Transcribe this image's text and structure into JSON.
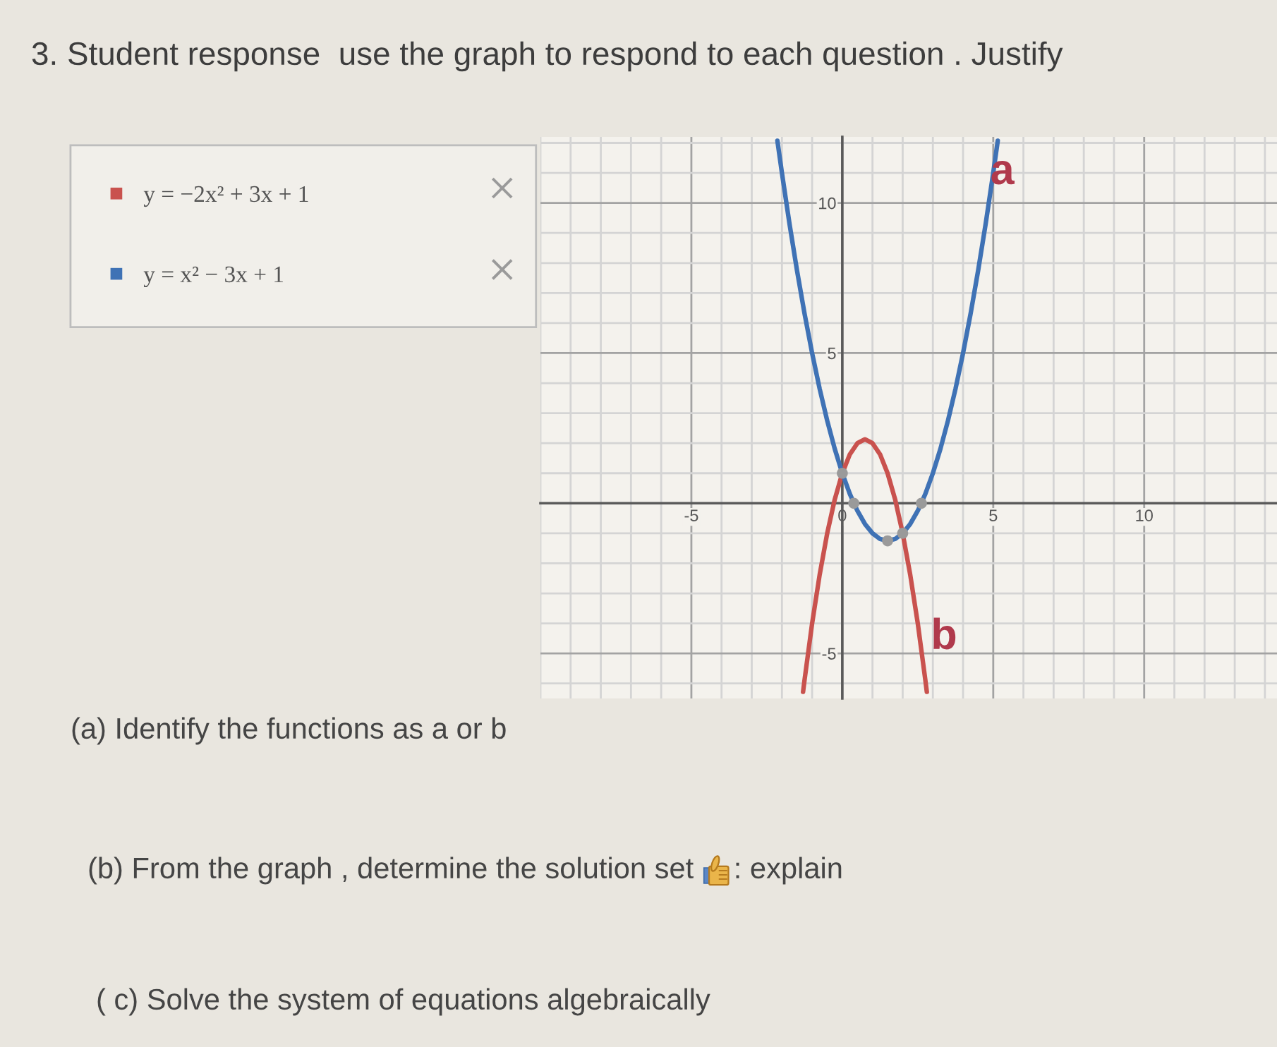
{
  "chart_data": {
    "type": "line",
    "title": "3. Student response  use the graph to respond to each question . Justify",
    "annotations": [
      "(a) Identify the functions as a or b",
      "(b) From the graph , determine the solution set",
      ": explain",
      "( c) Solve the system of equations algebraically",
      "b",
      {
        "text": "a",
        "x": 5.3,
        "y": 11
      }
    ],
    "series": [
      {
        "name": "y = −2x² + 3x + 1",
        "color": "#c9524e",
        "x": [
          -1.3,
          -1.25,
          -1,
          -0.75,
          -0.5,
          -0.25,
          0,
          0.25,
          0.5,
          0.75,
          1,
          1.25,
          1.5,
          1.75,
          2,
          2.25,
          2.5,
          2.75,
          2.8
        ],
        "values": [
          -6.28,
          -5.88,
          -4,
          -2.38,
          -1,
          0.13,
          1,
          1.63,
          2,
          2.13,
          2,
          1.63,
          1,
          0.13,
          -1,
          -2.38,
          -4,
          -5.88,
          -6.28
        ]
      },
      {
        "name": "y = x² − 3x + 1",
        "color": "#3f72b5",
        "x": [
          -2.15,
          -2,
          -1.75,
          -1.5,
          -1.25,
          -1,
          -0.75,
          -0.5,
          -0.25,
          0,
          0.25,
          0.5,
          0.75,
          1,
          1.25,
          1.5,
          1.75,
          2,
          2.25,
          2.5,
          2.75,
          3,
          3.25,
          3.5,
          3.75,
          4,
          4.25,
          4.5,
          4.75,
          5,
          5.15
        ],
        "values": [
          12.07,
          11,
          9.31,
          7.75,
          6.31,
          5,
          3.81,
          2.75,
          1.81,
          1,
          0.31,
          -0.25,
          -0.69,
          -1,
          -1.19,
          -1.25,
          -1.19,
          -1,
          -0.69,
          -0.25,
          0.31,
          1,
          1.81,
          2.75,
          3.81,
          5,
          6.31,
          7.75,
          9.31,
          11,
          12.07
        ]
      },
      {
        "type": "scatter",
        "color": "#9a9a9a",
        "marker": "circle",
        "x": [
          0,
          0.38,
          1.5,
          2,
          2.62
        ],
        "values": [
          1,
          0,
          -1.25,
          -1,
          0
        ]
      }
    ],
    "xlim": [
      -10,
      14.4
    ],
    "ylim": [
      -6.5,
      12.2
    ],
    "xticks": [
      {
        "value": -10,
        "label": null
      },
      {
        "value": -9,
        "label": null
      },
      {
        "value": -8,
        "label": null
      },
      {
        "value": -7,
        "label": null
      },
      {
        "value": -6,
        "label": null
      },
      -5,
      {
        "value": -4,
        "label": null
      },
      {
        "value": -3,
        "label": null
      },
      {
        "value": -2,
        "label": null
      },
      {
        "value": -1,
        "label": null
      },
      0,
      {
        "value": 1,
        "label": null
      },
      {
        "value": 2,
        "label": null
      },
      {
        "value": 3,
        "label": null
      },
      {
        "value": 4,
        "label": null
      },
      5,
      {
        "value": 6,
        "label": null
      },
      {
        "value": 7,
        "label": null
      },
      {
        "value": 8,
        "label": null
      },
      {
        "value": 9,
        "label": null
      },
      10,
      {
        "value": 11,
        "label": null
      },
      {
        "value": 12,
        "label": null
      },
      {
        "value": 13,
        "label": null
      },
      {
        "value": 14,
        "label": null
      }
    ],
    "yticks": [
      {
        "value": -6,
        "label": null
      },
      -5,
      {
        "value": -4,
        "label": null
      },
      {
        "value": -3,
        "label": null
      },
      {
        "value": -2,
        "label": null
      },
      {
        "value": -1,
        "label": null
      },
      {
        "value": 0,
        "label": null
      },
      {
        "value": 1,
        "label": null
      },
      {
        "value": 2,
        "label": null
      },
      {
        "value": 3,
        "label": null
      },
      {
        "value": 4,
        "label": null
      },
      5,
      {
        "value": 6,
        "label": null
      },
      {
        "value": 7,
        "label": null
      },
      {
        "value": 8,
        "label": null
      },
      {
        "value": 9,
        "label": null
      },
      10,
      {
        "value": 11,
        "label": null
      },
      {
        "value": 12,
        "label": null
      }
    ],
    "grid": true,
    "legend": "left",
    "line_style": "solid"
  }
}
